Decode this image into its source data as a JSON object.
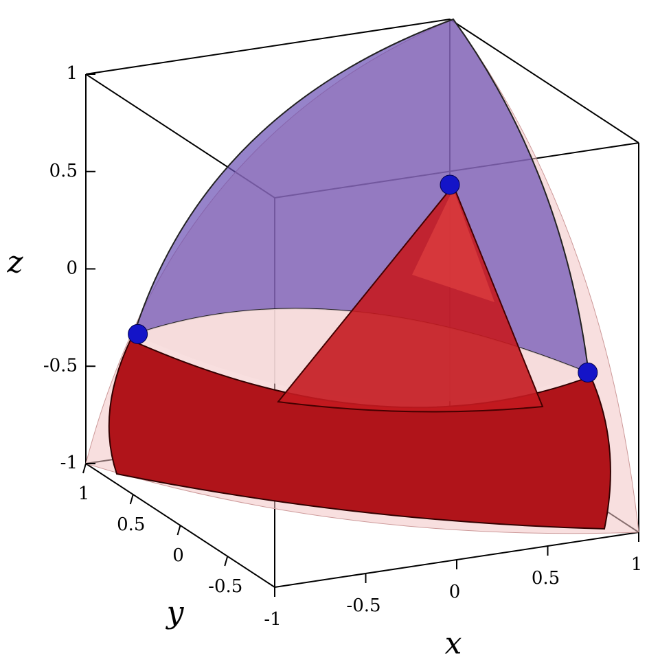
{
  "chart_data": {
    "type": "scatter3d",
    "xlabel": "x",
    "ylabel": "y",
    "zlabel": "z",
    "xlim": [
      -1,
      1
    ],
    "ylim": [
      -1,
      1
    ],
    "zlim": [
      -1,
      1
    ],
    "xticks": [
      -1,
      -0.5,
      0,
      0.5,
      1
    ],
    "yticks": [
      -0.5,
      0,
      0.5,
      1
    ],
    "zticks": [
      -1,
      -0.5,
      0,
      0.5,
      1
    ],
    "series": [
      {
        "color": "#1414c8",
        "x": [
          1,
          -1,
          0.72
        ],
        "y": [
          1,
          0.45,
          -1
        ],
        "z": [
          0.15,
          -0.16,
          -0.14
        ]
      }
    ]
  }
}
